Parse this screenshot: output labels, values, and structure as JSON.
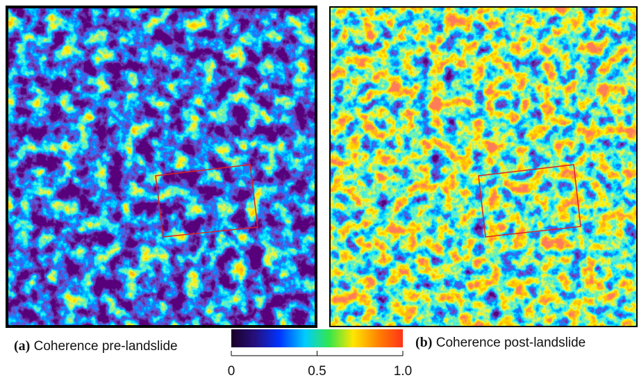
{
  "panels": [
    {
      "tag": "(a)",
      "caption": "Coherence pre-landslide"
    },
    {
      "tag": "(b)",
      "caption": "Coherence post-landslide"
    }
  ],
  "colorbar": {
    "range": [
      0,
      1
    ],
    "ticks": [
      0,
      0.5,
      {
        "value": 1,
        "label": "1.0"
      }
    ]
  }
}
